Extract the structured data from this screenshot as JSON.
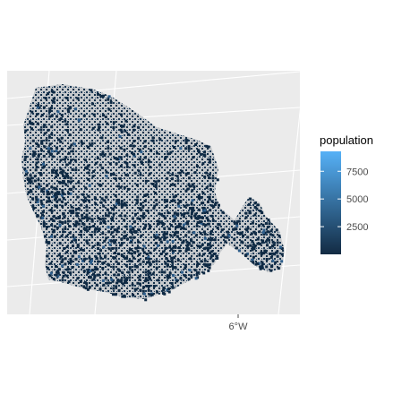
{
  "chart_data": {
    "type": "choropleth-raster",
    "x_axis": {
      "ticks": [
        "6°W"
      ]
    },
    "legend": {
      "title": "population",
      "position": "right",
      "breaks": [
        "2500",
        "5000",
        "7500"
      ],
      "break_values": [
        2500,
        5000,
        7500
      ],
      "range": [
        0,
        9300
      ],
      "low_color": "#132b43",
      "high_color": "#56b1f7"
    },
    "background_color": "#ebebeb",
    "na_color": "#bdbdbd",
    "grid": true
  }
}
